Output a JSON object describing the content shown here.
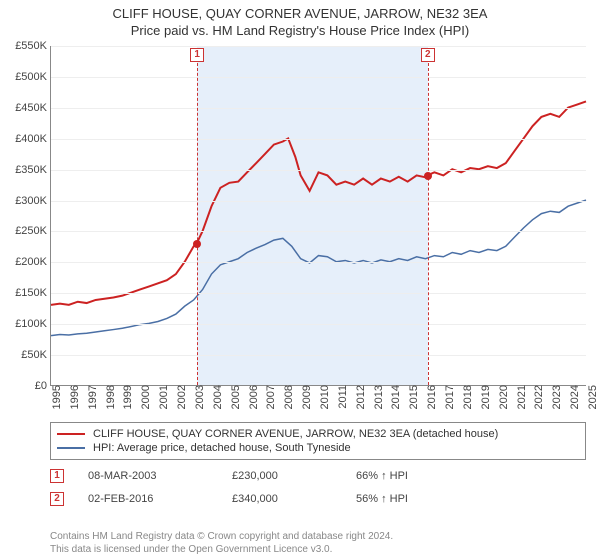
{
  "title": "CLIFF HOUSE, QUAY CORNER AVENUE, JARROW, NE32 3EA",
  "subtitle": "Price paid vs. HM Land Registry's House Price Index (HPI)",
  "chart": {
    "type": "line",
    "background_color": "#ffffff",
    "grid_color": "#eeeeee",
    "axis_color": "#888888",
    "highlight_band_color": "#e6effa",
    "ylim": [
      0,
      550000
    ],
    "ytick_step": 50000,
    "ytick_labels": [
      "£0",
      "£50K",
      "£100K",
      "£150K",
      "£200K",
      "£250K",
      "£300K",
      "£350K",
      "£400K",
      "£450K",
      "£500K",
      "£550K"
    ],
    "xlim": [
      1995,
      2025
    ],
    "xticks": [
      1995,
      1996,
      1997,
      1998,
      1999,
      2000,
      2001,
      2002,
      2003,
      2004,
      2005,
      2006,
      2007,
      2008,
      2009,
      2010,
      2011,
      2012,
      2013,
      2014,
      2015,
      2016,
      2017,
      2018,
      2019,
      2020,
      2021,
      2022,
      2023,
      2024,
      2025
    ],
    "highlight_band": {
      "start": 2003.18,
      "end": 2016.09
    },
    "series": [
      {
        "name": "CLIFF HOUSE, QUAY CORNER AVENUE, JARROW, NE32 3EA (detached house)",
        "color": "#cc2222",
        "width": 2,
        "points": [
          [
            1995.0,
            130000
          ],
          [
            1995.5,
            132000
          ],
          [
            1996.0,
            130000
          ],
          [
            1996.5,
            135000
          ],
          [
            1997.0,
            133000
          ],
          [
            1997.5,
            138000
          ],
          [
            1998.0,
            140000
          ],
          [
            1998.5,
            142000
          ],
          [
            1999.0,
            145000
          ],
          [
            1999.5,
            150000
          ],
          [
            2000.0,
            155000
          ],
          [
            2000.5,
            160000
          ],
          [
            2001.0,
            165000
          ],
          [
            2001.5,
            170000
          ],
          [
            2002.0,
            180000
          ],
          [
            2002.5,
            200000
          ],
          [
            2003.0,
            225000
          ],
          [
            2003.18,
            230000
          ],
          [
            2003.5,
            250000
          ],
          [
            2004.0,
            290000
          ],
          [
            2004.5,
            320000
          ],
          [
            2005.0,
            328000
          ],
          [
            2005.5,
            330000
          ],
          [
            2006.0,
            345000
          ],
          [
            2006.5,
            360000
          ],
          [
            2007.0,
            375000
          ],
          [
            2007.5,
            390000
          ],
          [
            2008.0,
            395000
          ],
          [
            2008.3,
            400000
          ],
          [
            2008.7,
            370000
          ],
          [
            2009.0,
            340000
          ],
          [
            2009.5,
            315000
          ],
          [
            2010.0,
            345000
          ],
          [
            2010.5,
            340000
          ],
          [
            2011.0,
            325000
          ],
          [
            2011.5,
            330000
          ],
          [
            2012.0,
            325000
          ],
          [
            2012.5,
            335000
          ],
          [
            2013.0,
            325000
          ],
          [
            2013.5,
            335000
          ],
          [
            2014.0,
            330000
          ],
          [
            2014.5,
            338000
          ],
          [
            2015.0,
            330000
          ],
          [
            2015.5,
            340000
          ],
          [
            2016.0,
            337000
          ],
          [
            2016.09,
            340000
          ],
          [
            2016.5,
            345000
          ],
          [
            2017.0,
            340000
          ],
          [
            2017.5,
            350000
          ],
          [
            2018.0,
            345000
          ],
          [
            2018.5,
            352000
          ],
          [
            2019.0,
            350000
          ],
          [
            2019.5,
            355000
          ],
          [
            2020.0,
            352000
          ],
          [
            2020.5,
            360000
          ],
          [
            2021.0,
            380000
          ],
          [
            2021.5,
            400000
          ],
          [
            2022.0,
            420000
          ],
          [
            2022.5,
            435000
          ],
          [
            2023.0,
            440000
          ],
          [
            2023.5,
            435000
          ],
          [
            2024.0,
            450000
          ],
          [
            2024.5,
            455000
          ],
          [
            2025.0,
            460000
          ]
        ]
      },
      {
        "name": "HPI: Average price, detached house, South Tyneside",
        "color": "#4a6fa5",
        "width": 1.5,
        "points": [
          [
            1995.0,
            80000
          ],
          [
            1995.5,
            82000
          ],
          [
            1996.0,
            81000
          ],
          [
            1996.5,
            83000
          ],
          [
            1997.0,
            84000
          ],
          [
            1997.5,
            86000
          ],
          [
            1998.0,
            88000
          ],
          [
            1998.5,
            90000
          ],
          [
            1999.0,
            92000
          ],
          [
            1999.5,
            95000
          ],
          [
            2000.0,
            98000
          ],
          [
            2000.5,
            100000
          ],
          [
            2001.0,
            103000
          ],
          [
            2001.5,
            108000
          ],
          [
            2002.0,
            115000
          ],
          [
            2002.5,
            128000
          ],
          [
            2003.0,
            138000
          ],
          [
            2003.5,
            155000
          ],
          [
            2004.0,
            180000
          ],
          [
            2004.5,
            195000
          ],
          [
            2005.0,
            200000
          ],
          [
            2005.5,
            205000
          ],
          [
            2006.0,
            215000
          ],
          [
            2006.5,
            222000
          ],
          [
            2007.0,
            228000
          ],
          [
            2007.5,
            235000
          ],
          [
            2008.0,
            238000
          ],
          [
            2008.5,
            225000
          ],
          [
            2009.0,
            205000
          ],
          [
            2009.5,
            198000
          ],
          [
            2010.0,
            210000
          ],
          [
            2010.5,
            208000
          ],
          [
            2011.0,
            200000
          ],
          [
            2011.5,
            202000
          ],
          [
            2012.0,
            198000
          ],
          [
            2012.5,
            202000
          ],
          [
            2013.0,
            198000
          ],
          [
            2013.5,
            203000
          ],
          [
            2014.0,
            200000
          ],
          [
            2014.5,
            205000
          ],
          [
            2015.0,
            202000
          ],
          [
            2015.5,
            208000
          ],
          [
            2016.0,
            205000
          ],
          [
            2016.5,
            210000
          ],
          [
            2017.0,
            208000
          ],
          [
            2017.5,
            215000
          ],
          [
            2018.0,
            212000
          ],
          [
            2018.5,
            218000
          ],
          [
            2019.0,
            215000
          ],
          [
            2019.5,
            220000
          ],
          [
            2020.0,
            218000
          ],
          [
            2020.5,
            225000
          ],
          [
            2021.0,
            240000
          ],
          [
            2021.5,
            255000
          ],
          [
            2022.0,
            268000
          ],
          [
            2022.5,
            278000
          ],
          [
            2023.0,
            282000
          ],
          [
            2023.5,
            280000
          ],
          [
            2024.0,
            290000
          ],
          [
            2024.5,
            295000
          ],
          [
            2025.0,
            300000
          ]
        ]
      }
    ],
    "markers": [
      {
        "id": "1",
        "x": 2003.18,
        "y": 230000,
        "color": "#cc2222"
      },
      {
        "id": "2",
        "x": 2016.09,
        "y": 340000,
        "color": "#cc2222"
      }
    ],
    "marker_line_color": "#cc3333",
    "marker_badge_border": "#cc3333"
  },
  "legend": {
    "border_color": "#888888",
    "items": [
      {
        "label": "CLIFF HOUSE, QUAY CORNER AVENUE, JARROW, NE32 3EA (detached house)",
        "color": "#cc2222"
      },
      {
        "label": "HPI: Average price, detached house, South Tyneside",
        "color": "#4a6fa5"
      }
    ]
  },
  "sales": [
    {
      "id": "1",
      "date": "08-MAR-2003",
      "price": "£230,000",
      "diff": "66% ↑ HPI"
    },
    {
      "id": "2",
      "date": "02-FEB-2016",
      "price": "£340,000",
      "diff": "56% ↑ HPI"
    }
  ],
  "footnote_line1": "Contains HM Land Registry data © Crown copyright and database right 2024.",
  "footnote_line2": "This data is licensed under the Open Government Licence v3.0."
}
